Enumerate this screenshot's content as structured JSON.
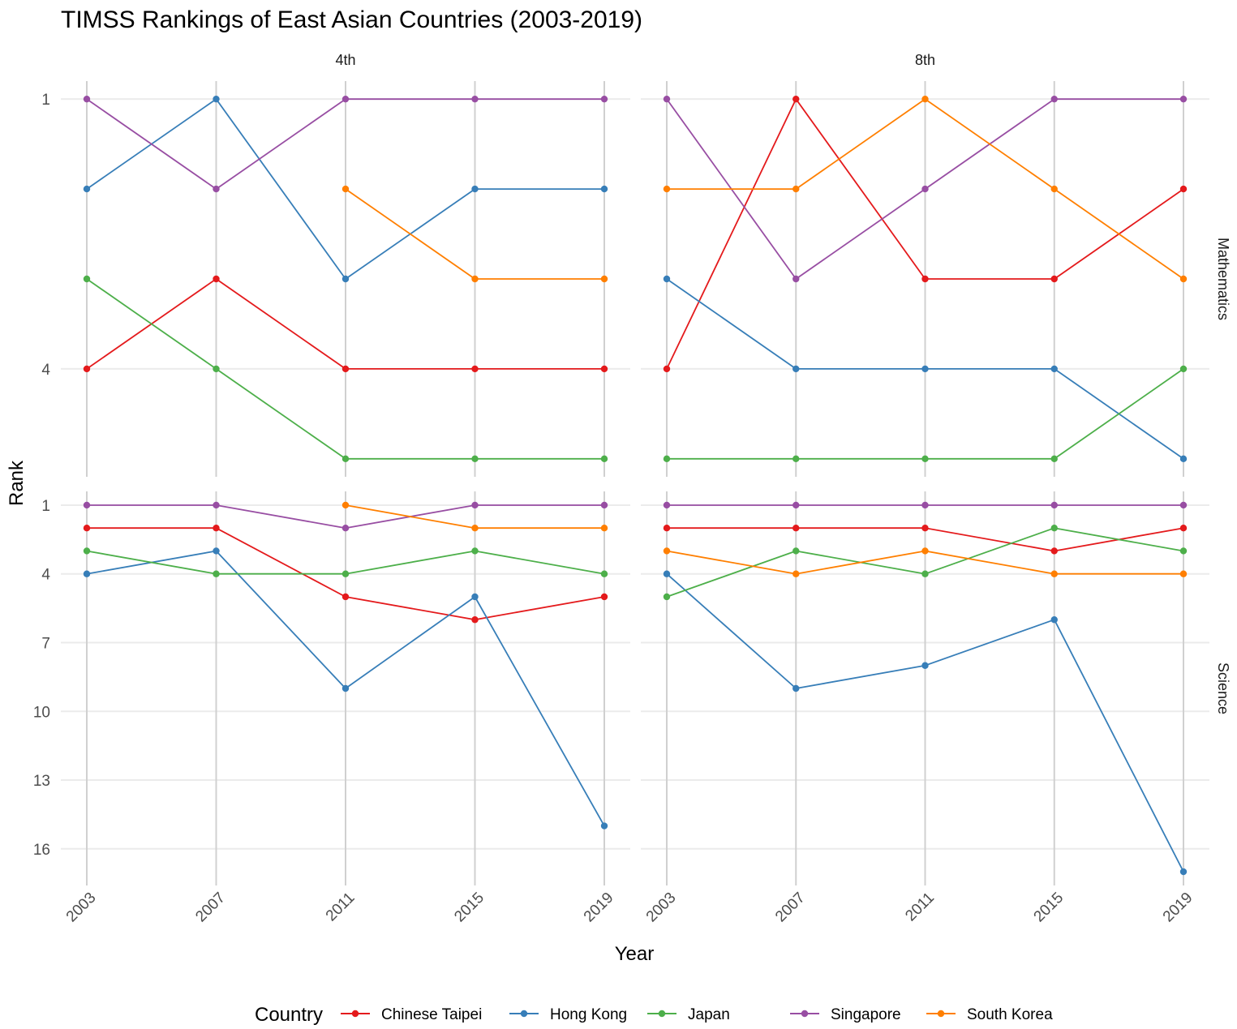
{
  "chart_data": {
    "type": "line",
    "title": "TIMSS Rankings of East Asian Countries (2003-2019)",
    "xlabel": "Year",
    "ylabel": "Rank",
    "x": [
      2003,
      2007,
      2011,
      2015,
      2019
    ],
    "x_tick_labels": [
      "2003",
      "2007",
      "2011",
      "2015",
      "2019"
    ],
    "legend": {
      "title": "Country",
      "position": "bottom",
      "entries": [
        "Chinese Taipei",
        "Hong Kong",
        "Japan",
        "Singapore",
        "South Korea"
      ]
    },
    "colors": {
      "Chinese Taipei": "#E41A1C",
      "Hong Kong": "#377EB8",
      "Japan": "#4DAF4A",
      "Singapore": "#984EA3",
      "South Korea": "#FF7F00"
    },
    "facet_columns": [
      "4th",
      "8th"
    ],
    "facet_rows": [
      "Mathematics",
      "Science"
    ],
    "rows": {
      "Mathematics": {
        "y_ticks": [
          1,
          4
        ],
        "ylim": [
          5.2,
          0.8
        ],
        "y_scale": "reversed"
      },
      "Science": {
        "y_ticks": [
          1,
          4,
          7,
          10,
          13,
          16
        ],
        "ylim": [
          17.6,
          0.4
        ],
        "y_scale": "reversed"
      }
    },
    "panels": [
      {
        "grade": "4th",
        "subject": "Mathematics",
        "series": [
          {
            "name": "Chinese Taipei",
            "x": [
              2003,
              2007,
              2011,
              2015,
              2019
            ],
            "values": [
              4,
              3,
              4,
              4,
              4
            ]
          },
          {
            "name": "Hong Kong",
            "x": [
              2003,
              2007,
              2011,
              2015,
              2019
            ],
            "values": [
              2,
              1,
              3,
              2,
              2
            ]
          },
          {
            "name": "Japan",
            "x": [
              2003,
              2007,
              2011,
              2015,
              2019
            ],
            "values": [
              3,
              4,
              5,
              5,
              5
            ]
          },
          {
            "name": "Singapore",
            "x": [
              2003,
              2007,
              2011,
              2015,
              2019
            ],
            "values": [
              1,
              2,
              1,
              1,
              1
            ]
          },
          {
            "name": "South Korea",
            "x": [
              2011,
              2015,
              2019
            ],
            "values": [
              2,
              3,
              3
            ]
          }
        ]
      },
      {
        "grade": "8th",
        "subject": "Mathematics",
        "series": [
          {
            "name": "Chinese Taipei",
            "x": [
              2003,
              2007,
              2011,
              2015,
              2019
            ],
            "values": [
              4,
              1,
              3,
              3,
              2
            ]
          },
          {
            "name": "Hong Kong",
            "x": [
              2003,
              2007,
              2011,
              2015,
              2019
            ],
            "values": [
              3,
              4,
              4,
              4,
              5
            ]
          },
          {
            "name": "Japan",
            "x": [
              2003,
              2007,
              2011,
              2015,
              2019
            ],
            "values": [
              5,
              5,
              5,
              5,
              4
            ]
          },
          {
            "name": "Singapore",
            "x": [
              2003,
              2007,
              2011,
              2015,
              2019
            ],
            "values": [
              1,
              3,
              2,
              1,
              1
            ]
          },
          {
            "name": "South Korea",
            "x": [
              2003,
              2007,
              2011,
              2015,
              2019
            ],
            "values": [
              2,
              2,
              1,
              2,
              3
            ]
          }
        ]
      },
      {
        "grade": "4th",
        "subject": "Science",
        "series": [
          {
            "name": "Chinese Taipei",
            "x": [
              2003,
              2007,
              2011,
              2015,
              2019
            ],
            "values": [
              2,
              2,
              5,
              6,
              5
            ]
          },
          {
            "name": "Hong Kong",
            "x": [
              2003,
              2007,
              2011,
              2015,
              2019
            ],
            "values": [
              4,
              3,
              9,
              5,
              15
            ]
          },
          {
            "name": "Japan",
            "x": [
              2003,
              2007,
              2011,
              2015,
              2019
            ],
            "values": [
              3,
              4,
              4,
              3,
              4
            ]
          },
          {
            "name": "Singapore",
            "x": [
              2003,
              2007,
              2011,
              2015,
              2019
            ],
            "values": [
              1,
              1,
              2,
              1,
              1
            ]
          },
          {
            "name": "South Korea",
            "x": [
              2011,
              2015,
              2019
            ],
            "values": [
              1,
              2,
              2
            ]
          }
        ]
      },
      {
        "grade": "8th",
        "subject": "Science",
        "series": [
          {
            "name": "Chinese Taipei",
            "x": [
              2003,
              2007,
              2011,
              2015,
              2019
            ],
            "values": [
              2,
              2,
              2,
              3,
              2
            ]
          },
          {
            "name": "Hong Kong",
            "x": [
              2003,
              2007,
              2011,
              2015,
              2019
            ],
            "values": [
              4,
              9,
              8,
              6,
              17
            ]
          },
          {
            "name": "Japan",
            "x": [
              2003,
              2007,
              2011,
              2015,
              2019
            ],
            "values": [
              5,
              3,
              4,
              2,
              3
            ]
          },
          {
            "name": "Singapore",
            "x": [
              2003,
              2007,
              2011,
              2015,
              2019
            ],
            "values": [
              1,
              1,
              1,
              1,
              1
            ]
          },
          {
            "name": "South Korea",
            "x": [
              2003,
              2007,
              2011,
              2015,
              2019
            ],
            "values": [
              3,
              4,
              3,
              4,
              4
            ]
          }
        ]
      }
    ],
    "grid": true,
    "theme": "minimal"
  }
}
